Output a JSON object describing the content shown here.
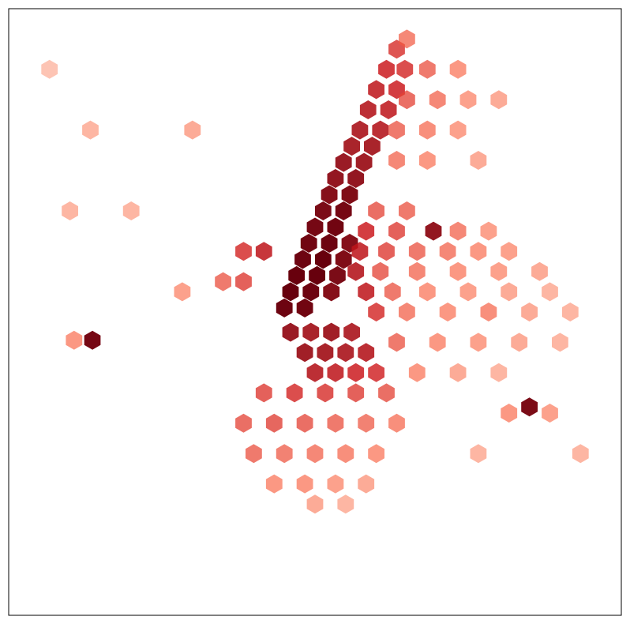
{
  "chart_data": {
    "type": "hexbin",
    "cmap": "Reds",
    "log_color": true,
    "xlim": [
      -74.05,
      -73.75
    ],
    "ylim": [
      40.6,
      40.9
    ],
    "x": [
      -73.915,
      -73.905,
      -73.912,
      -73.902,
      -73.892,
      -73.909,
      -73.899,
      -73.889,
      -73.906,
      -73.896,
      -73.886,
      -73.903,
      -73.893,
      -73.883,
      -73.9,
      -73.89,
      -73.896,
      -73.886,
      -73.893,
      -73.883,
      -73.89,
      -73.88,
      -73.886,
      -73.876,
      -73.882,
      -73.872,
      -73.878,
      -73.868,
      -73.874,
      -73.864,
      -73.87,
      -73.86,
      -73.865,
      -73.856,
      -73.86,
      -73.912,
      -73.902,
      -73.892,
      -73.882,
      -73.905,
      -73.895,
      -73.885,
      -73.875,
      -73.9,
      -73.89,
      -73.88,
      -73.87,
      -73.925,
      -73.91,
      -73.895,
      -73.88,
      -73.865,
      -73.935,
      -73.92,
      -73.905,
      -73.89,
      -73.875,
      -73.86,
      -73.93,
      -73.915,
      -73.9,
      -73.885,
      -73.87,
      -73.92,
      -73.905,
      -73.89,
      -73.875,
      -73.9,
      -73.885,
      -73.87,
      -73.855,
      -73.875,
      -73.86,
      -73.842,
      -73.83,
      -73.815,
      -73.878,
      -73.865,
      -73.85,
      -73.835,
      -73.82,
      -73.805,
      -73.88,
      -73.868,
      -73.85,
      -73.83,
      -73.81,
      -73.79,
      -73.875,
      -73.862,
      -73.845,
      -73.825,
      -73.805,
      -73.785,
      -73.87,
      -73.855,
      -73.835,
      -73.815,
      -73.795,
      -73.775,
      -73.86,
      -73.84,
      -73.82,
      -73.8,
      -73.78,
      -73.85,
      -73.83,
      -73.81,
      -73.795,
      -73.805,
      -73.785,
      -73.82,
      -73.77,
      -73.925,
      -73.935,
      -73.935,
      -73.945,
      -73.965,
      -74.009,
      -74.018,
      -74.02,
      -73.99,
      -74.01,
      -73.96,
      -74.03,
      -73.845,
      -73.83,
      -73.855,
      -73.84,
      -73.825,
      -73.81,
      -73.86,
      -73.845,
      -73.83,
      -73.86,
      -73.845,
      -73.82,
      -73.855
    ],
    "y": [
      40.752,
      40.752,
      40.76,
      40.76,
      40.76,
      40.768,
      40.768,
      40.768,
      40.776,
      40.776,
      40.776,
      40.784,
      40.784,
      40.784,
      40.792,
      40.792,
      40.8,
      40.8,
      40.808,
      40.808,
      40.816,
      40.816,
      40.824,
      40.824,
      40.832,
      40.832,
      40.84,
      40.84,
      40.85,
      40.85,
      40.86,
      40.86,
      40.87,
      40.87,
      40.88,
      40.74,
      40.74,
      40.74,
      40.74,
      40.73,
      40.73,
      40.73,
      40.73,
      40.72,
      40.72,
      40.72,
      40.72,
      40.71,
      40.71,
      40.71,
      40.71,
      40.71,
      40.695,
      40.695,
      40.695,
      40.695,
      40.695,
      40.695,
      40.68,
      40.68,
      40.68,
      40.68,
      40.68,
      40.665,
      40.665,
      40.665,
      40.665,
      40.655,
      40.655,
      40.8,
      40.8,
      40.79,
      40.79,
      40.79,
      40.79,
      40.79,
      40.78,
      40.78,
      40.78,
      40.78,
      40.78,
      40.78,
      40.77,
      40.77,
      40.77,
      40.77,
      40.77,
      40.77,
      40.76,
      40.76,
      40.76,
      40.76,
      40.76,
      40.76,
      40.75,
      40.75,
      40.75,
      40.75,
      40.75,
      40.75,
      40.735,
      40.735,
      40.735,
      40.735,
      40.735,
      40.72,
      40.72,
      40.72,
      40.703,
      40.7,
      40.7,
      40.68,
      40.68,
      40.78,
      40.78,
      40.765,
      40.765,
      40.76,
      40.736,
      40.736,
      40.8,
      40.8,
      40.84,
      40.84,
      40.87,
      40.87,
      40.87,
      40.855,
      40.855,
      40.855,
      40.855,
      40.84,
      40.84,
      40.84,
      40.825,
      40.825,
      40.825,
      40.885
    ],
    "values": [
      95,
      90,
      100,
      95,
      70,
      98,
      100,
      80,
      95,
      100,
      75,
      90,
      95,
      70,
      85,
      90,
      80,
      85,
      70,
      75,
      60,
      60,
      55,
      50,
      45,
      45,
      40,
      35,
      35,
      30,
      30,
      25,
      25,
      20,
      18,
      55,
      45,
      50,
      40,
      50,
      45,
      40,
      35,
      35,
      30,
      25,
      22,
      15,
      20,
      18,
      15,
      12,
      12,
      14,
      12,
      10,
      9,
      7,
      10,
      9,
      8,
      7,
      6,
      6,
      6,
      5,
      4,
      4,
      3,
      12,
      10,
      25,
      15,
      60,
      8,
      5,
      30,
      15,
      10,
      8,
      6,
      5,
      35,
      12,
      8,
      6,
      5,
      4,
      30,
      10,
      6,
      5,
      4,
      3,
      20,
      8,
      6,
      7,
      4,
      3,
      10,
      6,
      5,
      4,
      3,
      6,
      4,
      3,
      80,
      6,
      5,
      3,
      3,
      30,
      20,
      15,
      10,
      5,
      85,
      6,
      3,
      3,
      3,
      4,
      2,
      10,
      6,
      12,
      8,
      5,
      4,
      10,
      7,
      5,
      8,
      6,
      4,
      8
    ]
  }
}
